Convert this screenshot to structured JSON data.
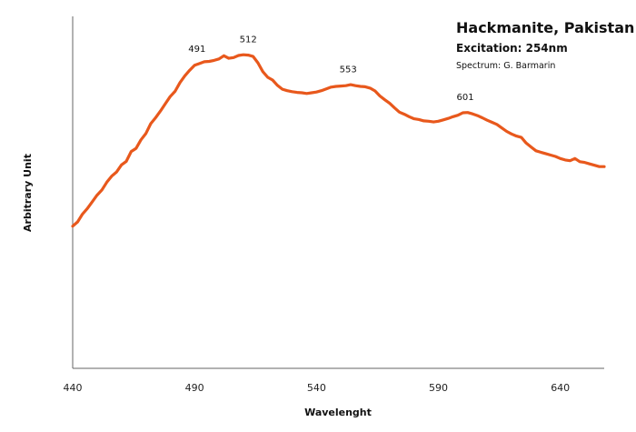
{
  "chart_data": {
    "type": "line",
    "title": "Hackmanite, Pakistan",
    "subtitle": "Excitation: 254nm",
    "credit": "Spectrum: G. Barmarin",
    "xlabel": "Wavelenght",
    "ylabel": "Arbitrary Unit",
    "xlim": [
      440,
      658
    ],
    "ylim": [
      0,
      100
    ],
    "x_ticks": [
      "440",
      "490",
      "540",
      "590",
      "640"
    ],
    "grid": false,
    "legend": "none",
    "line_color": "#e8581c",
    "peaks": [
      {
        "x": 491,
        "label": "491"
      },
      {
        "x": 512,
        "label": "512"
      },
      {
        "x": 553,
        "label": "553"
      },
      {
        "x": 601,
        "label": "601"
      }
    ],
    "series": [
      {
        "x": [
          440,
          442,
          444,
          446,
          448,
          450,
          452,
          454,
          456,
          458,
          460,
          462,
          464,
          466,
          468,
          470,
          472,
          474,
          476,
          478,
          480,
          482,
          484,
          486,
          488,
          490,
          492,
          494,
          496,
          498,
          500,
          502,
          504,
          506,
          508,
          510,
          512,
          514,
          516,
          518,
          520,
          522,
          524,
          526,
          528,
          530,
          532,
          534,
          536,
          538,
          540,
          542,
          544,
          546,
          548,
          550,
          552,
          554,
          556,
          558,
          560,
          562,
          564,
          566,
          568,
          570,
          572,
          574,
          576,
          578,
          580,
          582,
          584,
          586,
          588,
          590,
          592,
          594,
          596,
          598,
          600,
          602,
          604,
          606,
          608,
          610,
          612,
          614,
          616,
          618,
          620,
          622,
          624,
          626,
          628,
          630,
          632,
          634,
          636,
          638,
          640,
          642,
          644,
          646,
          648,
          650,
          652,
          654,
          656,
          658
        ],
        "y": [
          40.4,
          41.6,
          43.8,
          45.4,
          47.3,
          49.2,
          50.7,
          52.9,
          54.6,
          55.8,
          57.8,
          58.8,
          61.6,
          62.5,
          64.9,
          66.7,
          69.5,
          71.2,
          73.1,
          75.2,
          77.2,
          78.7,
          81.2,
          83.1,
          84.7,
          86.1,
          86.6,
          87.1,
          87.2,
          87.5,
          87.9,
          88.8,
          88.1,
          88.3,
          88.9,
          89.1,
          89.0,
          88.6,
          86.8,
          84.3,
          82.7,
          81.9,
          80.4,
          79.3,
          78.9,
          78.6,
          78.4,
          78.3,
          78.1,
          78.3,
          78.5,
          78.9,
          79.4,
          79.9,
          80.1,
          80.2,
          80.3,
          80.6,
          80.3,
          80.1,
          80.0,
          79.6,
          78.8,
          77.4,
          76.3,
          75.3,
          74.0,
          72.8,
          72.2,
          71.5,
          70.9,
          70.7,
          70.3,
          70.2,
          70.0,
          70.2,
          70.6,
          71.0,
          71.5,
          71.9,
          72.6,
          72.7,
          72.3,
          71.8,
          71.2,
          70.5,
          69.9,
          69.3,
          68.3,
          67.3,
          66.6,
          66.0,
          65.6,
          64.0,
          62.9,
          61.8,
          61.4,
          61.0,
          60.6,
          60.2,
          59.6,
          59.2,
          59.0,
          59.6,
          58.7,
          58.5,
          58.1,
          57.7,
          57.3,
          57.3
        ]
      }
    ]
  }
}
